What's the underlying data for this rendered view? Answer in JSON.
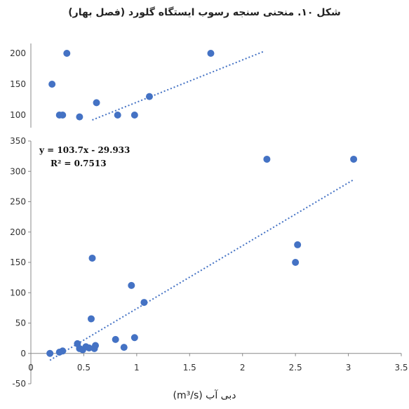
{
  "chart_data": [
    {
      "type": "scatter",
      "title": "شکل ۱۰. منحنی سنجه رسوب ایستگاه گلورد (فصل بهار)",
      "xlabel": "دبی آب (m³/s)",
      "ylabel": "",
      "xlim": [
        0,
        3.5
      ],
      "ylim": [
        -50,
        350
      ],
      "x_ticks": [
        "0",
        "0.5",
        "1",
        "1.5",
        "2",
        "2.5",
        "3",
        "3.5"
      ],
      "y_ticks": [
        "-50",
        "0",
        "50",
        "100",
        "150",
        "200",
        "250",
        "300",
        "350"
      ],
      "grid": false,
      "trendline": {
        "equation": "y = 103.7x - 29.933",
        "r2": "R² = 0.7513",
        "slope": 103.7,
        "intercept": -29.933,
        "x_range": [
          0.18,
          3.05
        ],
        "style": "dotted"
      },
      "points": [
        {
          "x": 0.18,
          "y": 0
        },
        {
          "x": 0.27,
          "y": 2
        },
        {
          "x": 0.3,
          "y": 4
        },
        {
          "x": 0.44,
          "y": 16
        },
        {
          "x": 0.46,
          "y": 8
        },
        {
          "x": 0.49,
          "y": 6
        },
        {
          "x": 0.52,
          "y": 11
        },
        {
          "x": 0.55,
          "y": 9
        },
        {
          "x": 0.57,
          "y": 57
        },
        {
          "x": 0.58,
          "y": 157
        },
        {
          "x": 0.61,
          "y": 13
        },
        {
          "x": 0.6,
          "y": 8
        },
        {
          "x": 0.8,
          "y": 23
        },
        {
          "x": 0.88,
          "y": 10
        },
        {
          "x": 0.95,
          "y": 112
        },
        {
          "x": 0.98,
          "y": 26
        },
        {
          "x": 1.07,
          "y": 84
        },
        {
          "x": 2.23,
          "y": 320
        },
        {
          "x": 2.5,
          "y": 150
        },
        {
          "x": 2.52,
          "y": 179
        },
        {
          "x": 3.05,
          "y": 320
        }
      ]
    },
    {
      "type": "scatter",
      "title": "",
      "xlabel": "",
      "ylabel": "",
      "ylim": [
        90,
        200
      ],
      "y_ticks": [
        "100",
        "150",
        "200"
      ],
      "partial": true,
      "trendline": {
        "style": "dotted"
      },
      "points": [
        {
          "x": 0.2,
          "y": 150
        },
        {
          "x": 0.27,
          "y": 100
        },
        {
          "x": 0.3,
          "y": 100
        },
        {
          "x": 0.34,
          "y": 200
        },
        {
          "x": 0.46,
          "y": 97
        },
        {
          "x": 0.62,
          "y": 120
        },
        {
          "x": 0.82,
          "y": 100
        },
        {
          "x": 0.98,
          "y": 100
        },
        {
          "x": 1.12,
          "y": 130
        },
        {
          "x": 1.7,
          "y": 200
        }
      ]
    }
  ]
}
